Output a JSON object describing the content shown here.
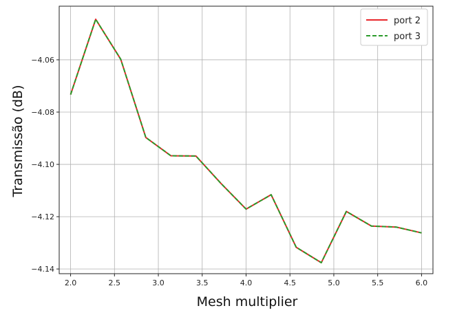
{
  "chart_data": {
    "type": "line",
    "xlabel": "Mesh multiplier",
    "ylabel": "Transmissão (dB)",
    "xlim": [
      1.87,
      6.13
    ],
    "ylim": [
      -4.1418,
      -4.0395
    ],
    "xticks": [
      2.0,
      2.5,
      3.0,
      3.5,
      4.0,
      4.5,
      5.0,
      5.5,
      6.0
    ],
    "xtick_labels": [
      "2.0",
      "2.5",
      "3.0",
      "3.5",
      "4.0",
      "4.5",
      "5.0",
      "5.5",
      "6.0"
    ],
    "yticks": [
      -4.14,
      -4.12,
      -4.1,
      -4.08,
      -4.06
    ],
    "ytick_labels": [
      "−4.14",
      "−4.12",
      "−4.10",
      "−4.08",
      "−4.06"
    ],
    "grid": true,
    "legend_position": "top-right",
    "x": [
      2.0,
      2.2857,
      2.5714,
      2.8571,
      3.1429,
      3.4286,
      3.7143,
      4.0,
      4.2857,
      4.5714,
      4.8571,
      5.1429,
      5.4286,
      5.7143,
      6.0
    ],
    "series": [
      {
        "name": "port 2",
        "color": "#e8262a",
        "style": "solid",
        "values": [
          -4.0733,
          -4.0445,
          -4.0598,
          -4.0897,
          -4.0967,
          -4.0968,
          -4.1073,
          -4.1171,
          -4.1116,
          -4.1317,
          -4.1376,
          -4.118,
          -4.1236,
          -4.124,
          -4.1262
        ]
      },
      {
        "name": "port 3",
        "color": "#2a9a2a",
        "style": "dashed",
        "values": [
          -4.0733,
          -4.0445,
          -4.0598,
          -4.0897,
          -4.0967,
          -4.0968,
          -4.1073,
          -4.1171,
          -4.1116,
          -4.1317,
          -4.1376,
          -4.118,
          -4.1236,
          -4.124,
          -4.1262
        ]
      }
    ]
  }
}
